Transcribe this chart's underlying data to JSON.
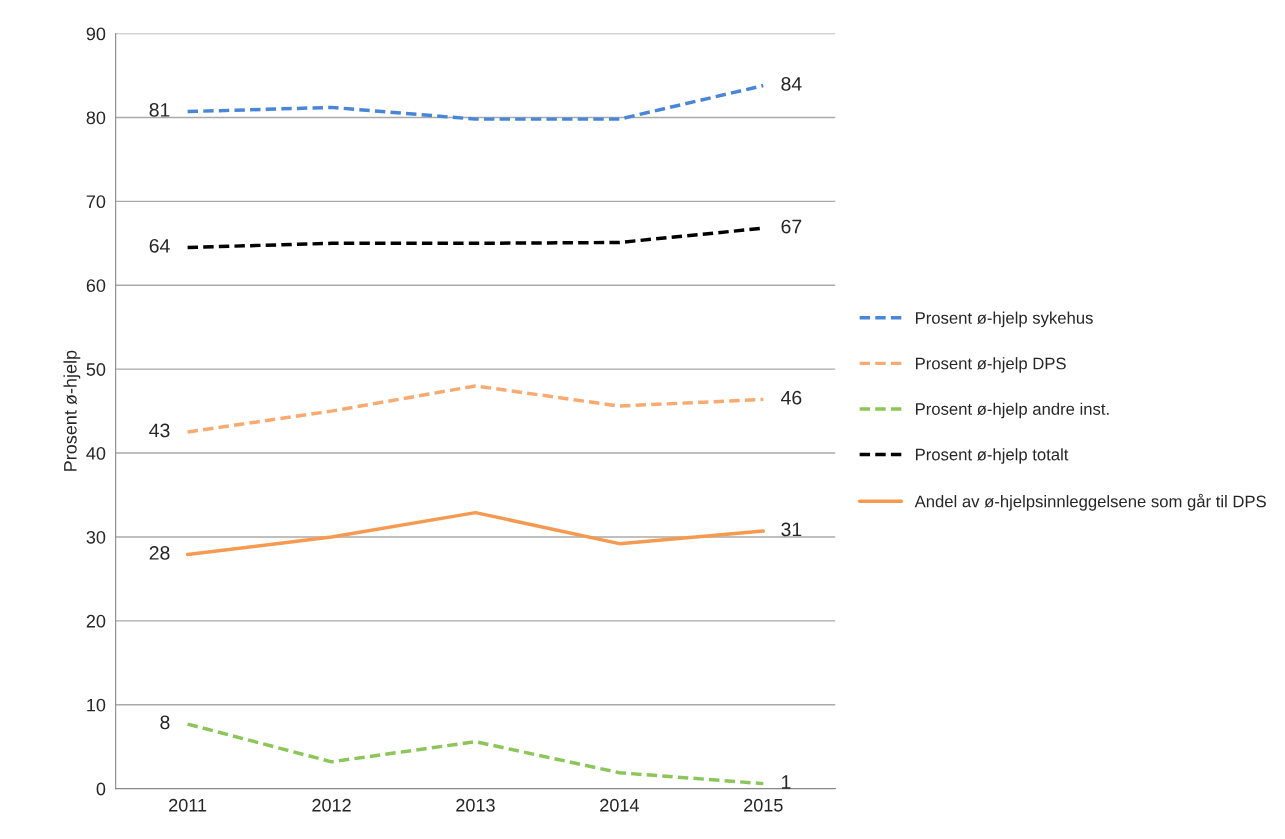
{
  "chart_data": {
    "type": "line",
    "ylabel": "Prosent ø-hjelp",
    "categories": [
      "2011",
      "2012",
      "2013",
      "2014",
      "2015"
    ],
    "series": [
      {
        "name": "Prosent ø-hjelp sykehus",
        "color": "#4a86d8",
        "line_style": "dashed",
        "values": [
          80.7,
          81.2,
          79.8,
          79.8,
          83.8
        ],
        "value_labels": [
          "81",
          null,
          null,
          null,
          "84"
        ]
      },
      {
        "name": "Prosent ø-hjelp DPS",
        "color": "#f9aa70",
        "line_style": "dashed",
        "values": [
          42.5,
          45.0,
          48.0,
          45.6,
          46.4
        ],
        "value_labels": [
          "43",
          null,
          null,
          null,
          "46"
        ]
      },
      {
        "name": "Prosent ø-hjelp andre inst.",
        "color": "#8cc65a",
        "line_style": "dashed",
        "values": [
          7.7,
          3.2,
          5.6,
          1.9,
          0.6
        ],
        "value_labels": [
          "8",
          null,
          null,
          null,
          "1"
        ]
      },
      {
        "name": "Prosent ø-hjelp totalt",
        "color": "#000000",
        "line_style": "dashed",
        "values": [
          64.5,
          65.0,
          65.0,
          65.1,
          66.8
        ],
        "value_labels": [
          "64",
          null,
          null,
          null,
          "67"
        ]
      },
      {
        "name": "Andel av ø-hjelpsinnleggelsene som går til DPS",
        "color": "#f59a50",
        "line_style": "solid",
        "values": [
          27.9,
          30.0,
          32.9,
          29.2,
          30.7
        ],
        "value_labels": [
          "28",
          null,
          null,
          null,
          "31"
        ]
      }
    ],
    "ylim": [
      0,
      90
    ],
    "yticks": [
      0,
      10,
      20,
      30,
      40,
      50,
      60,
      70,
      80,
      90
    ],
    "grid": "y",
    "legend": "right",
    "marker": "none"
  }
}
